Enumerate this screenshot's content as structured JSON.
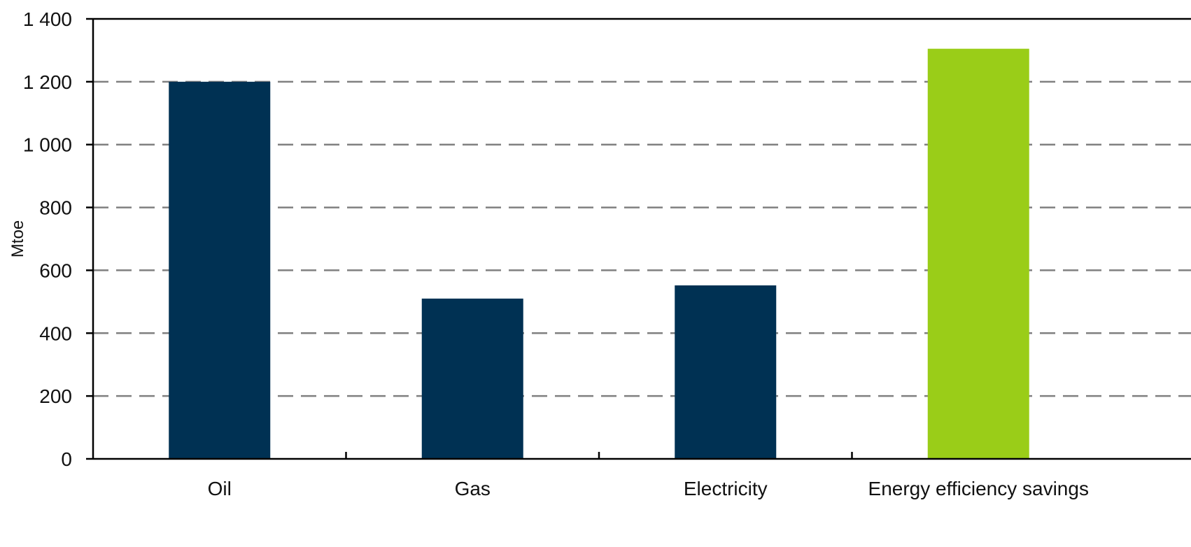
{
  "chart_data": {
    "type": "bar",
    "title": "",
    "xlabel": "",
    "ylabel": "Mtoe",
    "ylim": [
      0,
      1400
    ],
    "yticks": [
      0,
      200,
      400,
      600,
      800,
      1000,
      1200,
      1400
    ],
    "ytick_labels": [
      "0",
      "200",
      "400",
      "600",
      "800",
      "1 000",
      "1 200",
      "1 400"
    ],
    "grid": "horizontal dashed",
    "legend": "none",
    "categories": [
      "Oil",
      "Gas",
      "Electricity",
      "Energy efficiency savings"
    ],
    "values": [
      1200,
      510,
      552,
      1305
    ],
    "colors": [
      "#003153",
      "#003153",
      "#003153",
      "#9ACD18"
    ],
    "grid_color": "#808080",
    "axis_color": "#000000"
  }
}
